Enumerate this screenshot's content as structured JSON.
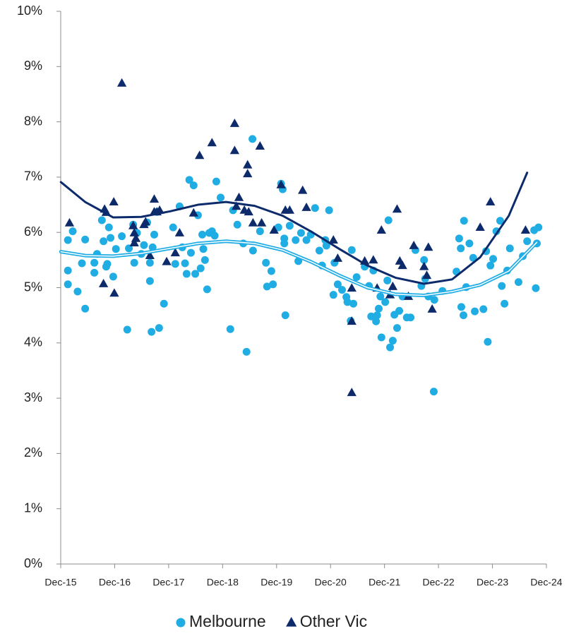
{
  "chart_data": {
    "type": "scatter",
    "xlim": [
      2015.917,
      2024.917
    ],
    "xticks": [
      {
        "value": 2015.917,
        "label": "Dec-15"
      },
      {
        "value": 2016.917,
        "label": "Dec-16"
      },
      {
        "value": 2017.917,
        "label": "Dec-17"
      },
      {
        "value": 2018.917,
        "label": "Dec-18"
      },
      {
        "value": 2019.917,
        "label": "Dec-19"
      },
      {
        "value": 2020.917,
        "label": "Dec-20"
      },
      {
        "value": 2021.917,
        "label": "Dec-21"
      },
      {
        "value": 2022.917,
        "label": "Dec-22"
      },
      {
        "value": 2023.917,
        "label": "Dec-23"
      },
      {
        "value": 2024.917,
        "label": "Dec-24"
      }
    ],
    "ylim": [
      0,
      10
    ],
    "yticks": [
      {
        "value": 0,
        "label": "0%"
      },
      {
        "value": 1,
        "label": "1%"
      },
      {
        "value": 2,
        "label": "2%"
      },
      {
        "value": 3,
        "label": "3%"
      },
      {
        "value": 4,
        "label": "4%"
      },
      {
        "value": 5,
        "label": "5%"
      },
      {
        "value": 6,
        "label": "6%"
      },
      {
        "value": 7,
        "label": "7%"
      },
      {
        "value": 8,
        "label": "8%"
      },
      {
        "value": 9,
        "label": "9%"
      },
      {
        "value": 10,
        "label": "10%"
      }
    ],
    "grid": false,
    "legend": "bottom",
    "series": [
      {
        "name": "Melbourne",
        "color": "#1fade4",
        "marker": "circle",
        "x": [
          2016.05,
          2016.05,
          2016.05,
          2016.14,
          2016.31,
          2016.23,
          2016.37,
          2016.37,
          2016.54,
          2016.54,
          2016.59,
          2016.68,
          2016.71,
          2016.78,
          2016.76,
          2016.81,
          2016.84,
          2016.89,
          2016.94,
          2017.05,
          2017.15,
          2017.18,
          2017.26,
          2017.28,
          2017.33,
          2017.41,
          2017.46,
          2017.52,
          2017.57,
          2017.57,
          2017.6,
          2017.62,
          2017.65,
          2017.7,
          2017.74,
          2017.83,
          2018.0,
          2018.04,
          2018.12,
          2018.17,
          2018.22,
          2018.25,
          2018.3,
          2018.33,
          2018.38,
          2018.41,
          2018.46,
          2018.51,
          2018.54,
          2018.56,
          2018.59,
          2018.63,
          2018.67,
          2018.72,
          2018.77,
          2018.8,
          2018.88,
          2019.06,
          2019.11,
          2019.19,
          2019.3,
          2019.36,
          2019.47,
          2019.48,
          2019.61,
          2019.72,
          2019.74,
          2019.82,
          2019.85,
          2019.95,
          2020.0,
          2020.03,
          2020.06,
          2020.06,
          2020.08,
          2020.16,
          2020.27,
          2020.32,
          2020.37,
          2020.47,
          2020.55,
          2020.63,
          2020.71,
          2020.76,
          2020.82,
          2020.84,
          2020.89,
          2020.97,
          2020.99,
          2021.05,
          2021.13,
          2021.21,
          2021.23,
          2021.29,
          2021.31,
          2021.34,
          2021.4,
          2021.55,
          2021.63,
          2021.67,
          2021.71,
          2021.76,
          2021.78,
          2021.81,
          2021.84,
          2021.86,
          2021.93,
          2021.97,
          2021.99,
          2022.02,
          2022.07,
          2022.1,
          2022.15,
          2022.19,
          2022.25,
          2022.33,
          2022.4,
          2022.49,
          2022.6,
          2022.65,
          2022.67,
          2022.73,
          2022.83,
          2022.84,
          2022.99,
          2023.25,
          2023.3,
          2023.33,
          2023.34,
          2023.38,
          2023.39,
          2023.43,
          2023.49,
          2023.56,
          2023.59,
          2023.75,
          2023.8,
          2023.83,
          2023.88,
          2023.93,
          2023.99,
          2024.06,
          2024.09,
          2024.14,
          2024.19,
          2024.24,
          2024.4,
          2024.48,
          2024.56,
          2024.69,
          2024.72,
          2024.74,
          2024.77
        ],
        "values": [
          5.86,
          5.31,
          5.06,
          6.02,
          5.44,
          4.93,
          4.62,
          5.87,
          5.27,
          5.45,
          5.61,
          6.22,
          5.84,
          5.43,
          5.38,
          6.09,
          5.9,
          5.2,
          5.7,
          5.93,
          4.24,
          5.71,
          6.14,
          5.45,
          5.99,
          5.61,
          5.77,
          6.18,
          5.45,
          5.12,
          4.2,
          5.73,
          5.96,
          6.37,
          4.27,
          4.71,
          6.09,
          5.43,
          6.47,
          5.73,
          5.44,
          5.25,
          6.95,
          5.63,
          6.85,
          5.25,
          6.31,
          5.35,
          5.96,
          5.7,
          5.5,
          4.97,
          5.99,
          6.02,
          5.94,
          6.92,
          6.63,
          4.25,
          6.4,
          6.14,
          5.8,
          3.84,
          7.69,
          5.67,
          6.02,
          5.45,
          5.02,
          5.3,
          5.06,
          6.09,
          6.88,
          6.78,
          5.89,
          5.8,
          4.5,
          6.12,
          5.86,
          5.48,
          5.99,
          5.86,
          5.96,
          6.44,
          5.67,
          5.4,
          5.86,
          5.76,
          6.4,
          4.87,
          5.45,
          5.06,
          4.96,
          4.83,
          4.74,
          4.4,
          5.68,
          4.71,
          5.19,
          5.38,
          5.03,
          4.48,
          5.31,
          4.39,
          4.5,
          4.62,
          4.84,
          4.1,
          4.74,
          5.13,
          6.22,
          3.92,
          4.04,
          4.51,
          4.27,
          4.58,
          4.84,
          4.46,
          4.46,
          5.68,
          5.03,
          5.5,
          5.16,
          4.84,
          3.12,
          4.78,
          4.94,
          5.29,
          5.89,
          5.71,
          4.65,
          4.5,
          6.21,
          5.01,
          5.8,
          5.54,
          4.57,
          4.61,
          5.66,
          4.02,
          5.4,
          5.52,
          6.02,
          6.21,
          5.03,
          4.71,
          5.31,
          5.71,
          5.1,
          5.57,
          5.84,
          6.04,
          4.99,
          5.8,
          6.09
        ],
        "trend": {
          "x": [
            2015.92,
            2016.37,
            2016.89,
            2017.41,
            2017.94,
            2018.46,
            2018.98,
            2019.51,
            2020.03,
            2020.55,
            2021.08,
            2021.6,
            2022.12,
            2022.65,
            2023.17,
            2023.69,
            2024.22,
            2024.74
          ],
          "values": [
            5.65,
            5.58,
            5.57,
            5.62,
            5.71,
            5.8,
            5.84,
            5.8,
            5.68,
            5.47,
            5.22,
            5.0,
            4.88,
            4.86,
            4.93,
            5.05,
            5.3,
            5.82
          ]
        }
      },
      {
        "name": "Other Vic",
        "color": "#0d2b6b",
        "marker": "triangle",
        "x": [
          2016.08,
          2016.73,
          2016.76,
          2016.71,
          2016.9,
          2016.91,
          2017.05,
          2017.26,
          2017.28,
          2017.28,
          2017.31,
          2017.46,
          2017.49,
          2017.57,
          2017.65,
          2017.65,
          2017.7,
          2017.75,
          2017.88,
          2018.04,
          2018.12,
          2018.38,
          2018.49,
          2018.72,
          2019.14,
          2019.14,
          2019.17,
          2019.22,
          2019.32,
          2019.38,
          2019.38,
          2019.4,
          2019.48,
          2019.61,
          2019.64,
          2019.87,
          2020.0,
          2020.08,
          2020.16,
          2020.4,
          2020.47,
          2020.97,
          2021.05,
          2021.31,
          2021.31,
          2021.31,
          2021.55,
          2021.71,
          2021.78,
          2021.86,
          2022.02,
          2022.07,
          2022.15,
          2022.2,
          2022.25,
          2022.36,
          2022.46,
          2022.65,
          2022.7,
          2022.73,
          2022.8,
          2023.69,
          2023.88,
          2024.53
        ],
        "values": [
          6.17,
          6.42,
          6.36,
          5.07,
          6.55,
          4.9,
          8.7,
          6.12,
          5.81,
          5.99,
          5.89,
          6.14,
          6.19,
          5.58,
          6.6,
          6.37,
          6.37,
          6.4,
          5.47,
          5.63,
          5.99,
          6.35,
          7.39,
          7.62,
          7.97,
          7.48,
          6.47,
          6.63,
          6.4,
          7.22,
          7.06,
          6.37,
          6.17,
          7.56,
          6.17,
          6.04,
          6.86,
          6.4,
          6.4,
          6.76,
          6.45,
          5.86,
          5.53,
          4.99,
          4.39,
          3.1,
          5.48,
          5.5,
          4.99,
          6.04,
          4.87,
          5.02,
          6.42,
          5.48,
          5.4,
          4.84,
          5.76,
          5.38,
          5.22,
          5.73,
          4.61,
          6.09,
          6.55,
          6.04
        ],
        "trend": {
          "x": [
            2015.92,
            2016.37,
            2016.89,
            2017.41,
            2017.94,
            2018.46,
            2018.98,
            2019.51,
            2020.03,
            2020.55,
            2021.08,
            2021.6,
            2022.12,
            2022.65,
            2023.17,
            2023.69,
            2024.22,
            2024.56
          ],
          "values": [
            6.91,
            6.55,
            6.27,
            6.28,
            6.38,
            6.5,
            6.55,
            6.48,
            6.3,
            6.02,
            5.7,
            5.4,
            5.18,
            5.07,
            5.15,
            5.55,
            6.3,
            7.08
          ]
        }
      }
    ]
  }
}
